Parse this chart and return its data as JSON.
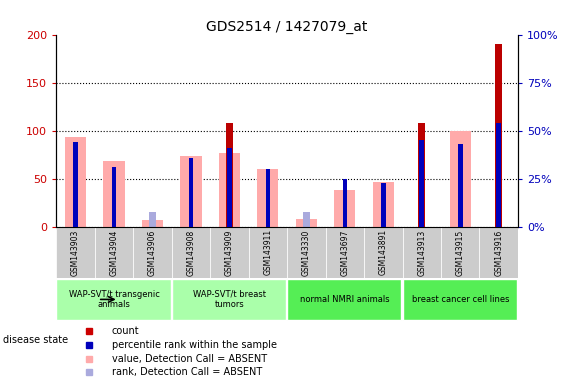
{
  "title": "GDS2514 / 1427079_at",
  "samples": [
    "GSM143903",
    "GSM143904",
    "GSM143906",
    "GSM143908",
    "GSM143909",
    "GSM143911",
    "GSM143330",
    "GSM143697",
    "GSM143891",
    "GSM143913",
    "GSM143915",
    "GSM143916"
  ],
  "count_values": [
    0,
    0,
    0,
    0,
    108,
    0,
    0,
    0,
    0,
    108,
    0,
    190
  ],
  "percentile_values": [
    44,
    31,
    0,
    36,
    41,
    30,
    0,
    25,
    23,
    45,
    43,
    54
  ],
  "pink_bar_values": [
    93,
    68,
    7,
    74,
    77,
    60,
    8,
    38,
    47,
    0,
    100,
    0
  ],
  "blue_bar_values": [
    0,
    0,
    15,
    0,
    0,
    0,
    15,
    0,
    0,
    0,
    0,
    0
  ],
  "ylim_left": [
    0,
    200
  ],
  "ylim_right": [
    0,
    100
  ],
  "yticks_left": [
    0,
    50,
    100,
    150,
    200
  ],
  "yticks_right": [
    0,
    25,
    50,
    75,
    100
  ],
  "yticklabels_right": [
    "0%",
    "25%",
    "50%",
    "75%",
    "100%"
  ],
  "group_boundaries": [
    {
      "start": 0,
      "end": 3,
      "label": "WAP-SVT/t transgenic\nanimals",
      "color": "#aaffaa"
    },
    {
      "start": 3,
      "end": 6,
      "label": "WAP-SVT/t breast\ntumors",
      "color": "#aaffaa"
    },
    {
      "start": 6,
      "end": 9,
      "label": "normal NMRI animals",
      "color": "#55ee55"
    },
    {
      "start": 9,
      "end": 12,
      "label": "breast cancer cell lines",
      "color": "#55ee55"
    }
  ],
  "legend_items": [
    {
      "color": "#cc0000",
      "label": "count"
    },
    {
      "color": "#0000bb",
      "label": "percentile rank within the sample"
    },
    {
      "color": "#ffaaaa",
      "label": "value, Detection Call = ABSENT"
    },
    {
      "color": "#aaaadd",
      "label": "rank, Detection Call = ABSENT"
    }
  ],
  "count_color": "#bb0000",
  "percentile_color": "#0000bb",
  "pink_color": "#ffaaaa",
  "blue_color": "#aaaadd",
  "left_axis_color": "#cc0000",
  "right_axis_color": "#0000bb",
  "bg_color": "#ffffff",
  "pink_bar_width": 0.55,
  "count_bar_width": 0.18,
  "percentile_bar_width": 0.12,
  "blue_bar_width": 0.18
}
